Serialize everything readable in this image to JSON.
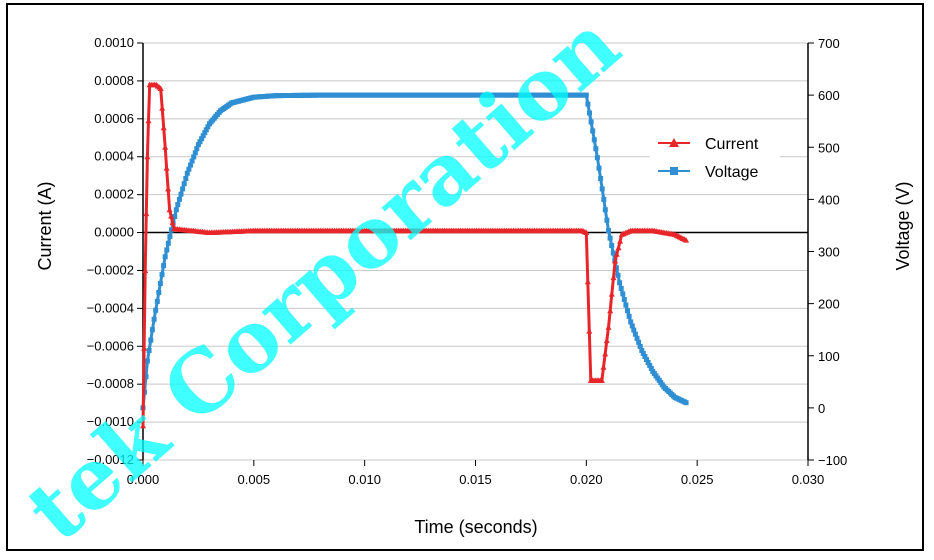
{
  "chart_data": {
    "type": "line",
    "xlabel": "Time (seconds)",
    "ylabel_left": "Current (A)",
    "ylabel_right": "Voltage (V)",
    "xlim": [
      0,
      0.03
    ],
    "ylim_left": [
      -0.0012,
      0.001
    ],
    "ylim_right": [
      -100,
      700
    ],
    "x_ticks": [
      "0.000",
      "0.005",
      "0.010",
      "0.015",
      "0.020",
      "0.025",
      "0.030"
    ],
    "y_left_ticks": [
      "0.0010",
      "0.0008",
      "0.0006",
      "0.0004",
      "0.0002",
      "0.0000",
      "−0.0002",
      "−0.0004",
      "−0.0006",
      "−0.0008",
      "−0.0010",
      "−0.0012"
    ],
    "y_right_ticks": [
      "700",
      "600",
      "500",
      "400",
      "300",
      "200",
      "100",
      "0",
      "−100"
    ],
    "grid": true,
    "legend_position": "right",
    "series": [
      {
        "name": "Current",
        "axis": "left",
        "color": "#e8262a",
        "marker": "triangle",
        "points": [
          [
            0.0,
            -0.00102
          ],
          [
            0.0001,
            -0.0002
          ],
          [
            0.0002,
            0.0004
          ],
          [
            0.0003,
            0.00078
          ],
          [
            0.0006,
            0.00078
          ],
          [
            0.0008,
            0.00076
          ],
          [
            0.001,
            0.00045
          ],
          [
            0.0012,
            0.00012
          ],
          [
            0.0014,
            2e-05
          ],
          [
            0.003,
            0.0
          ],
          [
            0.005,
            1e-05
          ],
          [
            0.008,
            1e-05
          ],
          [
            0.012,
            1e-05
          ],
          [
            0.016,
            1e-05
          ],
          [
            0.0198,
            1e-05
          ],
          [
            0.02,
            0.0
          ],
          [
            0.0202,
            -0.00078
          ],
          [
            0.0207,
            -0.00078
          ],
          [
            0.021,
            -0.0005
          ],
          [
            0.0213,
            -0.00015
          ],
          [
            0.0216,
            -1e-05
          ],
          [
            0.022,
            1e-05
          ],
          [
            0.023,
            1e-05
          ],
          [
            0.024,
            -1e-05
          ],
          [
            0.0245,
            -4e-05
          ]
        ]
      },
      {
        "name": "Voltage",
        "axis": "right",
        "color": "#2f8fd2",
        "marker": "square",
        "points": [
          [
            0.0,
            0.0
          ],
          [
            0.0002,
            90
          ],
          [
            0.0005,
            170
          ],
          [
            0.001,
            290
          ],
          [
            0.0015,
            380
          ],
          [
            0.002,
            450
          ],
          [
            0.0025,
            505
          ],
          [
            0.003,
            545
          ],
          [
            0.0035,
            570
          ],
          [
            0.004,
            585
          ],
          [
            0.005,
            596
          ],
          [
            0.006,
            599
          ],
          [
            0.008,
            600
          ],
          [
            0.012,
            600
          ],
          [
            0.016,
            600
          ],
          [
            0.02,
            600
          ],
          [
            0.0205,
            480
          ],
          [
            0.021,
            340
          ],
          [
            0.0215,
            240
          ],
          [
            0.022,
            165
          ],
          [
            0.0225,
            110
          ],
          [
            0.023,
            70
          ],
          [
            0.0235,
            40
          ],
          [
            0.024,
            20
          ],
          [
            0.0245,
            10
          ]
        ]
      }
    ]
  },
  "watermark": "tek Corporation"
}
